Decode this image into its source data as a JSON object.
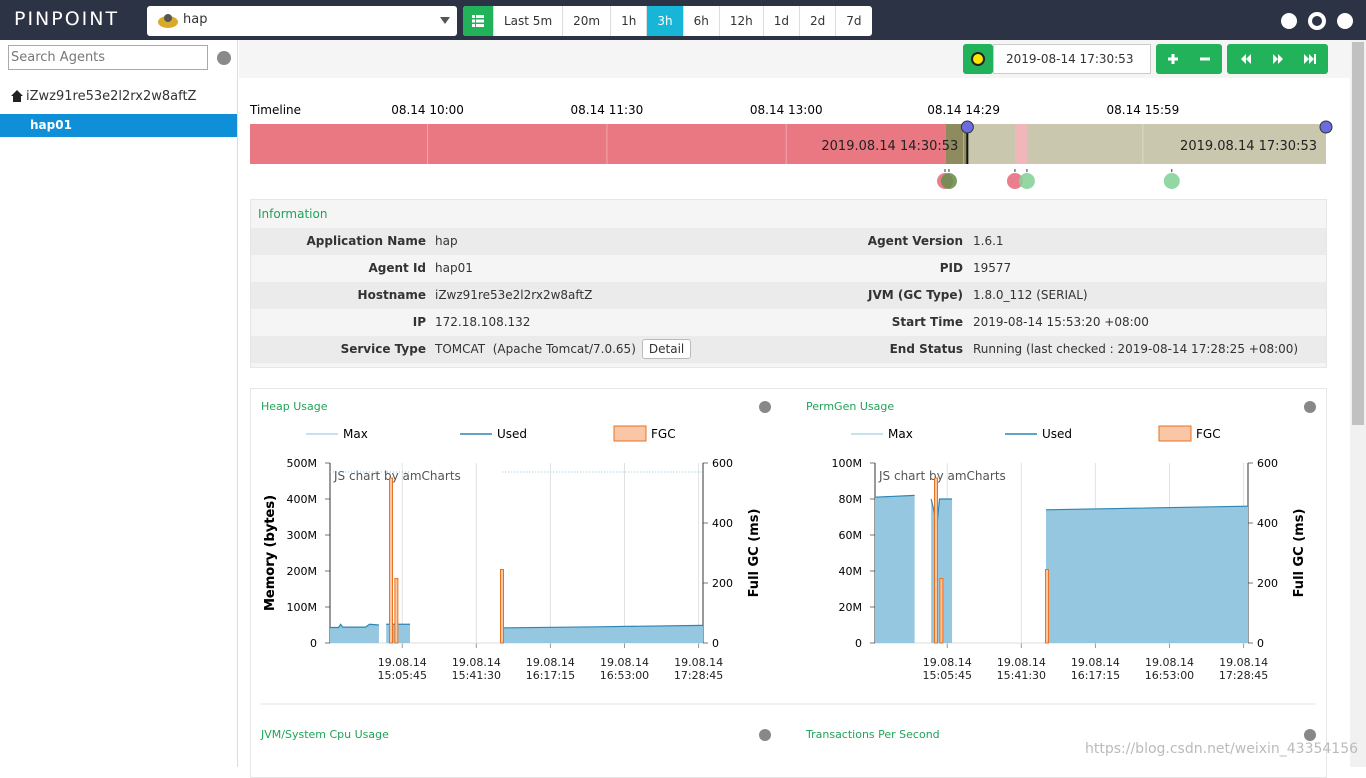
{
  "header": {
    "logo": "PINPOINT",
    "application": "hap",
    "periods": [
      "Last 5m",
      "20m",
      "1h",
      "3h",
      "6h",
      "12h",
      "1d",
      "2d",
      "7d"
    ],
    "active_period": "3h"
  },
  "sidebar": {
    "search_placeholder": "Search Agents",
    "host": "iZwz91re53e2l2rx2w8aftZ",
    "agent": "hap01"
  },
  "toolbar": {
    "datetime": "2019-08-14 17:30:53"
  },
  "timeline": {
    "label": "Timeline",
    "xlim": [
      "2019-08-14T08:30:53",
      "2019-08-14T17:30:53"
    ],
    "xticks": [
      {
        "value": "2019-08-14T10:00:00",
        "label": "08.14 10:00"
      },
      {
        "value": "2019-08-14T11:30:00",
        "label": "08.14 11:30"
      },
      {
        "value": "2019-08-14T13:00:00",
        "label": "08.14 13:00"
      },
      {
        "value": "2019-08-14T14:29:00",
        "label": "08.14 14:29"
      },
      {
        "value": "2019-08-14T15:59:00",
        "label": "08.14 15:59"
      }
    ],
    "segments": [
      {
        "start": "2019-08-14T08:30:53",
        "end": "2019-08-14T14:20:00",
        "color": "#e97882"
      },
      {
        "start": "2019-08-14T14:20:00",
        "end": "2019-08-14T14:30:53",
        "color": "#8e8c5e"
      },
      {
        "start": "2019-08-14T14:30:53",
        "end": "2019-08-14T17:30:53",
        "color": "#c9c8ae"
      },
      {
        "start": "2019-08-14T14:54:47",
        "end": "2019-08-14T15:00:47",
        "color": "#f2b5b9"
      }
    ],
    "selection": [
      {
        "value": "2019-08-14T14:30:53",
        "label": "2019.08.14 14:30:53"
      },
      {
        "value": "2019-08-14T17:30:53",
        "label": "2019.08.14 17:30:53"
      }
    ],
    "events": [
      {
        "time": "2019-08-14T14:19:41",
        "color": "#e8707f"
      },
      {
        "time": "2019-08-14T14:21:40",
        "color": "#6b8f4f"
      },
      {
        "time": "2019-08-14T14:54:47",
        "color": "#e8707f"
      },
      {
        "time": "2019-08-14T15:00:47",
        "color": "#86d39a"
      },
      {
        "time": "2019-08-14T16:13:29",
        "color": "#86d39a"
      }
    ]
  },
  "information": {
    "title": "Information",
    "detail_button": "Detail",
    "left_rows": [
      [
        "Application Name",
        "hap"
      ],
      [
        "Agent Id",
        "hap01"
      ],
      [
        "Hostname",
        "iZwz91re53e2l2rx2w8aftZ"
      ],
      [
        "IP",
        "172.18.108.132"
      ],
      [
        "Service Type",
        "TOMCAT  (Apache Tomcat/7.0.65)"
      ]
    ],
    "right_rows": [
      [
        "Agent Version",
        "1.6.1"
      ],
      [
        "PID",
        "19577"
      ],
      [
        "JVM (GC Type)",
        "1.8.0_112 (SERIAL)"
      ],
      [
        "Start Time",
        "2019-08-14 15:53:20 +08:00"
      ],
      [
        "End Status",
        "Running (last checked : 2019-08-14 17:28:25 +08:00)"
      ]
    ]
  },
  "chart_data": [
    {
      "type": "line",
      "title": "Heap Usage",
      "credit": "JS chart by amCharts",
      "y_label": "Memory (bytes)",
      "y2_label": "Full GC (ms)",
      "ylim": [
        0,
        500000000
      ],
      "yticks": [
        0,
        {
          "value": 100000000,
          "label": "100M"
        },
        {
          "value": 200000000,
          "label": "200M"
        },
        {
          "value": 300000000,
          "label": "300M"
        },
        {
          "value": 400000000,
          "label": "400M"
        },
        {
          "value": 500000000,
          "label": "500M"
        }
      ],
      "y2lim": [
        0,
        600
      ],
      "y2ticks": [
        0,
        200,
        400,
        600
      ],
      "xlim": [
        "2019-08-14T14:30:53",
        "2019-08-14T17:30:53"
      ],
      "xticks": [
        {
          "value": "2019-08-14T15:05:45",
          "label": "19.08.14 15:05:45"
        },
        {
          "value": "2019-08-14T15:41:30",
          "label": "19.08.14 15:41:30"
        },
        {
          "value": "2019-08-14T16:17:15",
          "label": "19.08.14 16:17:15"
        },
        {
          "value": "2019-08-14T16:53:00",
          "label": "19.08.14 16:53:00"
        },
        {
          "value": "2019-08-14T17:28:45",
          "label": "19.08.14 17:28:45"
        }
      ],
      "series": [
        {
          "name": "Max",
          "kind": "dotted",
          "color": "#8ec5e0",
          "x": [
            "2019-08-14T14:30:53",
            "2019-08-14T15:09:30",
            "2019-08-14T15:30:00",
            "2019-08-14T15:54:00",
            "2019-08-14T17:30:53"
          ],
          "values": [
            475000000,
            475000000,
            null,
            475000000,
            475000000
          ]
        },
        {
          "name": "Used",
          "kind": "area",
          "color": "#2f86b5",
          "x": [
            "2019-08-14T14:30:53",
            "2019-08-14T14:35:00",
            "2019-08-14T14:36:00",
            "2019-08-14T14:37:00",
            "2019-08-14T14:48:00",
            "2019-08-14T14:50:00",
            "2019-08-14T14:54:30",
            "2019-08-14T14:56:00",
            "2019-08-14T14:58:00",
            "2019-08-14T15:09:30",
            "2019-08-14T15:30:00",
            "2019-08-14T15:54:30",
            "2019-08-14T16:40:00",
            "2019-08-14T17:30:53"
          ],
          "values": [
            43000000,
            43000000,
            52000000,
            44000000,
            44000000,
            52000000,
            50000000,
            null,
            52000000,
            52000000,
            null,
            42000000,
            45000000,
            49000000
          ]
        },
        {
          "name": "FGC",
          "kind": "bar",
          "axis": "y2",
          "color": "#f9c6a6",
          "x": [
            "2019-08-14T15:00:19",
            "2019-08-14T15:02:55",
            "2019-08-14T15:53:53"
          ],
          "values": [
            550,
            215,
            245
          ]
        }
      ]
    },
    {
      "type": "line",
      "title": "PermGen Usage",
      "credit": "JS chart by amCharts",
      "y_label": "Memory (bytes)",
      "y2_label": "Full GC (ms)",
      "ylim": [
        0,
        100000000
      ],
      "yticks": [
        0,
        {
          "value": 20000000,
          "label": "20M"
        },
        {
          "value": 40000000,
          "label": "40M"
        },
        {
          "value": 60000000,
          "label": "60M"
        },
        {
          "value": 80000000,
          "label": "80M"
        },
        {
          "value": 100000000,
          "label": "100M"
        }
      ],
      "y2lim": [
        0,
        600
      ],
      "y2ticks": [
        0,
        200,
        400,
        600
      ],
      "xlim": [
        "2019-08-14T14:30:53",
        "2019-08-14T17:30:53"
      ],
      "xticks": [
        {
          "value": "2019-08-14T15:05:45",
          "label": "19.08.14 15:05:45"
        },
        {
          "value": "2019-08-14T15:41:30",
          "label": "19.08.14 15:41:30"
        },
        {
          "value": "2019-08-14T16:17:15",
          "label": "19.08.14 16:17:15"
        },
        {
          "value": "2019-08-14T16:53:00",
          "label": "19.08.14 16:53:00"
        },
        {
          "value": "2019-08-14T17:28:45",
          "label": "19.08.14 17:28:45"
        }
      ],
      "series": [
        {
          "name": "Max",
          "kind": "dotted",
          "color": "#8ec5e0",
          "x": [],
          "values": []
        },
        {
          "name": "Used",
          "kind": "area",
          "color": "#2f86b5",
          "x": [
            "2019-08-14T14:30:53",
            "2019-08-14T14:50:00",
            "2019-08-14T14:51:00",
            "2019-08-14T14:58:00",
            "2019-08-14T15:00:50",
            "2019-08-14T15:02:00",
            "2019-08-14T15:08:04",
            "2019-08-14T15:30:00",
            "2019-08-14T15:53:24",
            "2019-08-14T17:30:53"
          ],
          "values": [
            81000000,
            82000000,
            null,
            80000000,
            66000000,
            80000000,
            80000000,
            null,
            74000000,
            76000000
          ]
        },
        {
          "name": "FGC",
          "kind": "bar",
          "axis": "y2",
          "color": "#f9c6a6",
          "x": [
            "2019-08-14T15:00:19",
            "2019-08-14T15:02:55",
            "2019-08-14T15:53:53"
          ],
          "values": [
            550,
            215,
            245
          ]
        }
      ]
    }
  ],
  "panels": [
    "JVM/System Cpu Usage",
    "Transactions Per Second"
  ],
  "watermark": "https://blog.csdn.net/weixin_43354156"
}
